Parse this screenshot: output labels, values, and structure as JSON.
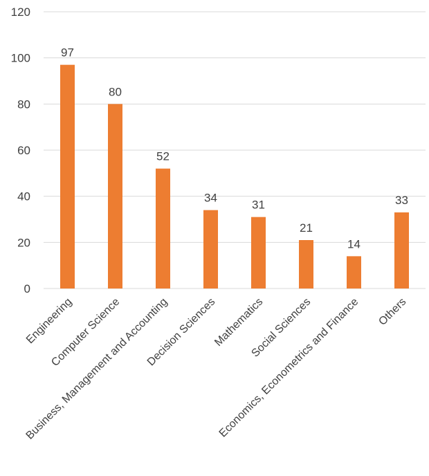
{
  "chart_data": {
    "type": "bar",
    "title": "",
    "xlabel": "",
    "ylabel": "",
    "categories": [
      "Engineering",
      "Computer Science",
      "Business, Management and Accounting",
      "Decision Sciences",
      "Mathematics",
      "Social Sciences",
      "Economics, Econometrics and Finance",
      "Others"
    ],
    "values": [
      97,
      80,
      52,
      34,
      31,
      21,
      14,
      33
    ],
    "ylim": [
      0,
      120
    ],
    "yticks": [
      0,
      20,
      40,
      60,
      80,
      100,
      120
    ],
    "grid": true,
    "data_labels": true,
    "bar_color": "#ED7D31",
    "grid_color": "#D9D9D9",
    "text_color": "#404040"
  }
}
